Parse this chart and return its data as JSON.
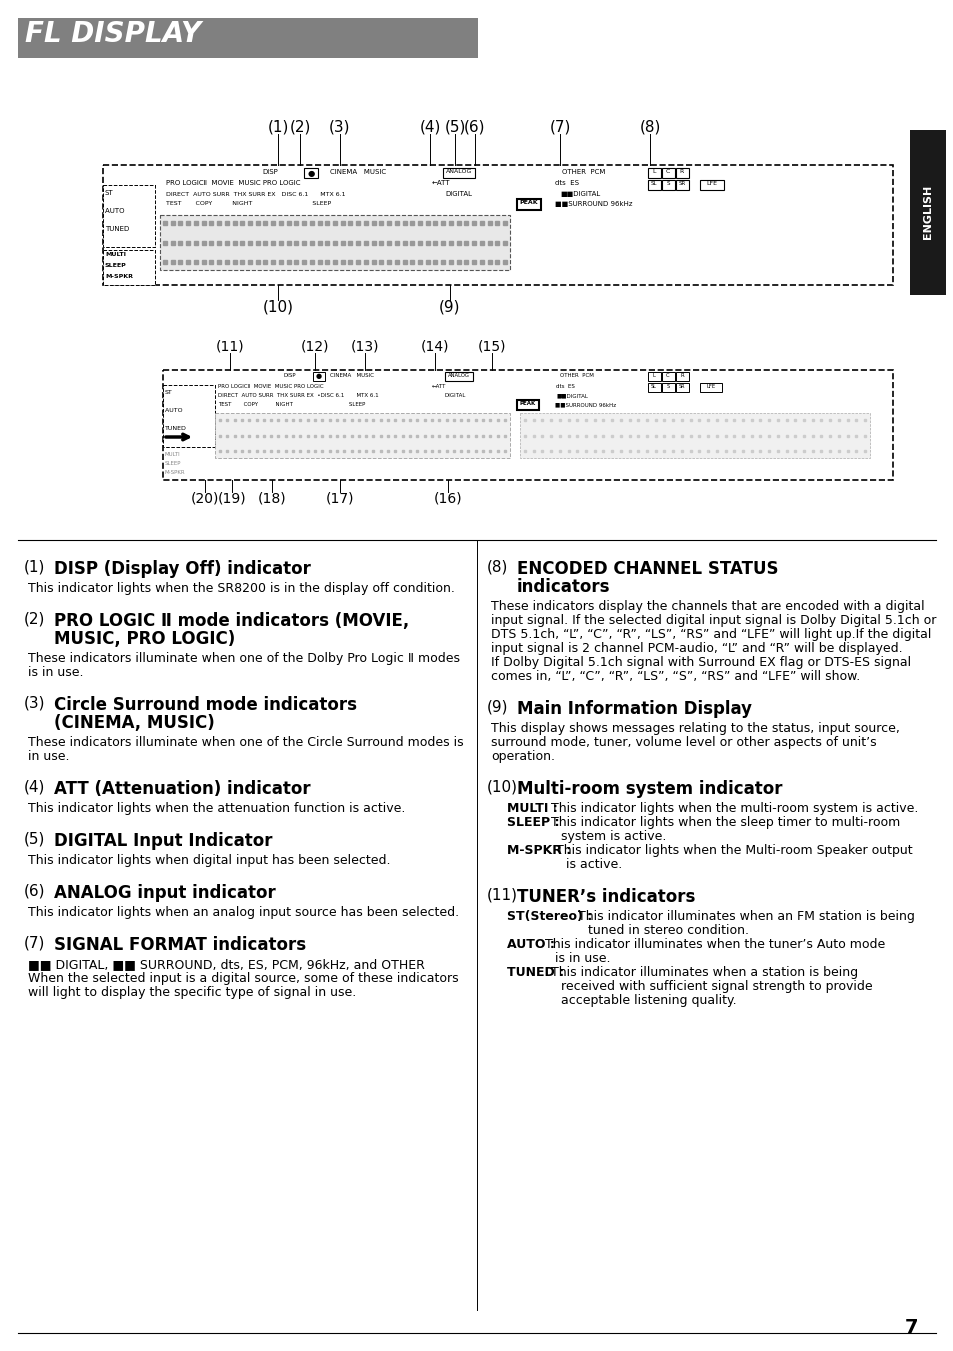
{
  "title": "FL DISPLAY",
  "title_bg": "#808080",
  "title_text_color": "#ffffff",
  "page_bg": "#ffffff",
  "page_number": "7",
  "english_tab_bg": "#1a1a1a",
  "english_tab_text": "ENGLISH",
  "sections_left": [
    {
      "num": "1",
      "heading": "DISP (Display Off) indicator",
      "body": "This indicator lights when the SR8200 is in the display off condition."
    },
    {
      "num": "2",
      "heading": "PRO LOGIC Ⅱ mode indicators (MOVIE,\nMUSIC, PRO LOGIC)",
      "body": "These indicators illuminate when one of the Dolby Pro Logic Ⅱ modes\nis in use."
    },
    {
      "num": "3",
      "heading": "Circle Surround mode indicators\n(CINEMA, MUSIC)",
      "body": "These indicators illuminate when one of the Circle Surround modes is\nin use."
    },
    {
      "num": "4",
      "heading": "ATT (Attenuation) indicator",
      "body": "This indicator lights when the attenuation function is active."
    },
    {
      "num": "5",
      "heading": "DIGITAL Input Indicator",
      "body": "This indicator lights when digital input has been selected."
    },
    {
      "num": "6",
      "heading": "ANALOG input indicator",
      "body": "This indicator lights when an analog input source has been selected."
    },
    {
      "num": "7",
      "heading": "SIGNAL FORMAT indicators",
      "body": "■■ DIGITAL, ■■ SURROUND, dts, ES, PCM, 96kHz, and OTHER\nWhen the selected input is a digital source, some of these indicators\nwill light to display the specific type of signal in use."
    }
  ],
  "sections_right": [
    {
      "num": "8",
      "heading": "ENCODED CHANNEL STATUS\nindicators",
      "body": "These indicators display the channels that are encoded with a digital\ninput signal. If the selected digital input signal is Dolby Digital 5.1ch or\nDTS 5.1ch, “L”, “C”, “R”, “LS”, “RS” and “LFE” will light up.If the digital\ninput signal is 2 channel PCM-audio, “L” and “R” will be displayed.\nIf Dolby Digital 5.1ch signal with Surround EX flag or DTS-ES signal\ncomes in, “L”, “C”, “R”, “LS”, “S”, “RS” and “LFE” will show."
    },
    {
      "num": "9",
      "heading": "Main Information Display",
      "body": "This display shows messages relating to the status, input source,\nsurround mode, tuner, volume level or other aspects of unit’s\noperation."
    },
    {
      "num": "10",
      "heading": "Multi-room system indicator",
      "body_special": [
        [
          "MULTI : ",
          "This indicator lights when the multi-room system is active."
        ],
        [
          "SLEEP : ",
          "This indicator lights when the sleep timer to multi-room\n              system is active."
        ],
        [
          "M-SPKR : ",
          "This indicator lights when the Multi-room Speaker output\n              is active."
        ]
      ]
    },
    {
      "num": "11",
      "heading": "TUNER’s indicators",
      "body_special": [
        [
          "ST(Stereo) : ",
          "This indicator illuminates when an FM station is being\n                tuned in stereo condition."
        ],
        [
          "AUTO : ",
          "This indicator illuminates when the tuner’s Auto mode\n          is in use."
        ],
        [
          "TUNED : ",
          "This indicator illuminates when a station is being\n            received with sufficient signal strength to provide\n            acceptable listening quality."
        ]
      ]
    }
  ]
}
